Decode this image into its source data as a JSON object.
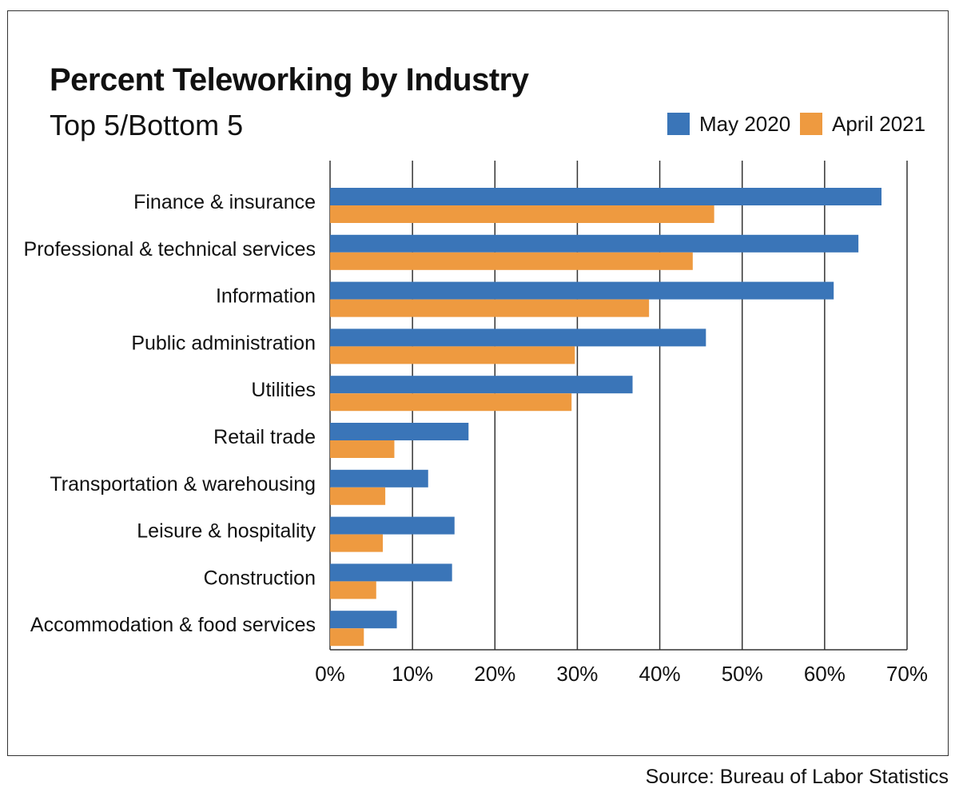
{
  "chart_data": {
    "type": "bar",
    "orientation": "horizontal",
    "title": "Percent Teleworking by Industry",
    "subtitle": "Top 5/Bottom 5",
    "categories": [
      "Finance & insurance",
      "Professional & technical services",
      "Information",
      "Public administration",
      "Utilities",
      "Retail trade",
      "Transportation & warehousing",
      "Leisure & hospitality",
      "Construction",
      "Accommodation & food services"
    ],
    "series": [
      {
        "name": "May 2020",
        "color": "#3a75b8",
        "values": [
          66.9,
          64.1,
          61.1,
          45.6,
          36.7,
          16.8,
          11.9,
          15.1,
          14.8,
          8.1
        ]
      },
      {
        "name": "April 2021",
        "color": "#ee9a40",
        "values": [
          46.6,
          44.0,
          38.7,
          29.7,
          29.3,
          7.8,
          6.7,
          6.4,
          5.6,
          4.1
        ]
      }
    ],
    "xlim": [
      0,
      70
    ],
    "xticks": [
      "0%",
      "10%",
      "20%",
      "30%",
      "40%",
      "50%",
      "60%",
      "70%"
    ],
    "grid": "vertical",
    "legend": "top-right"
  },
  "source": "Source: Bureau of Labor Statistics"
}
